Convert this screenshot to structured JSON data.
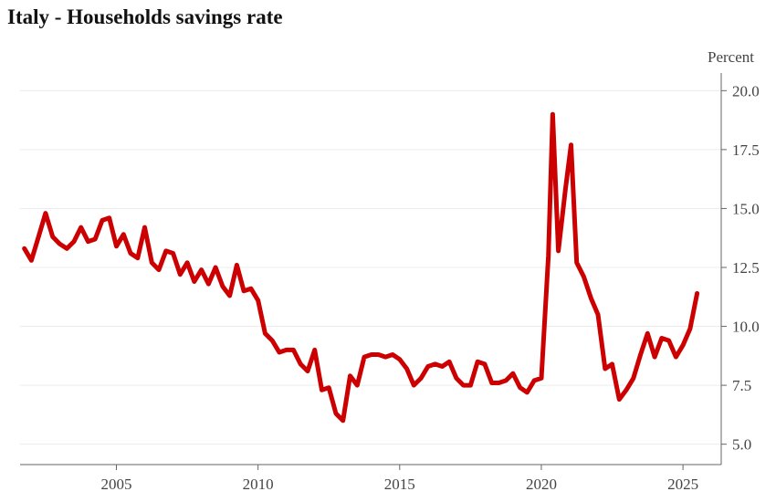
{
  "title": "Italy - Households savings rate",
  "chart_data": {
    "type": "line",
    "title": "Italy - Households savings rate",
    "ylabel": "Percent",
    "xlabel": "",
    "xlim": [
      2001.6,
      2026.35
    ],
    "ylim": [
      4.6,
      20.4
    ],
    "x_ticks": [
      2005,
      2010,
      2015,
      2020,
      2025
    ],
    "y_ticks": [
      5.0,
      7.5,
      10.0,
      12.5,
      15.0,
      17.5,
      20.0
    ],
    "y_axis_position": "right",
    "grid": true,
    "line_color": "#cc0000",
    "series": [
      {
        "name": "",
        "points": [
          [
            2001.75,
            13.3
          ],
          [
            2002.0,
            12.8
          ],
          [
            2002.25,
            13.8
          ],
          [
            2002.5,
            14.8
          ],
          [
            2002.75,
            13.8
          ],
          [
            2003.0,
            13.5
          ],
          [
            2003.25,
            13.3
          ],
          [
            2003.5,
            13.6
          ],
          [
            2003.75,
            14.2
          ],
          [
            2004.0,
            13.6
          ],
          [
            2004.25,
            13.7
          ],
          [
            2004.5,
            14.5
          ],
          [
            2004.75,
            14.6
          ],
          [
            2005.0,
            13.4
          ],
          [
            2005.25,
            13.9
          ],
          [
            2005.5,
            13.1
          ],
          [
            2005.75,
            12.9
          ],
          [
            2006.0,
            14.2
          ],
          [
            2006.25,
            12.7
          ],
          [
            2006.5,
            12.4
          ],
          [
            2006.75,
            13.2
          ],
          [
            2007.0,
            13.1
          ],
          [
            2007.25,
            12.2
          ],
          [
            2007.5,
            12.7
          ],
          [
            2007.75,
            11.9
          ],
          [
            2008.0,
            12.4
          ],
          [
            2008.25,
            11.8
          ],
          [
            2008.5,
            12.5
          ],
          [
            2008.75,
            11.7
          ],
          [
            2009.0,
            11.3
          ],
          [
            2009.25,
            12.6
          ],
          [
            2009.5,
            11.5
          ],
          [
            2009.75,
            11.6
          ],
          [
            2010.0,
            11.1
          ],
          [
            2010.25,
            9.7
          ],
          [
            2010.5,
            9.4
          ],
          [
            2010.75,
            8.9
          ],
          [
            2011.0,
            9.0
          ],
          [
            2011.25,
            9.0
          ],
          [
            2011.5,
            8.4
          ],
          [
            2011.75,
            8.1
          ],
          [
            2012.0,
            9.0
          ],
          [
            2012.25,
            7.3
          ],
          [
            2012.5,
            7.4
          ],
          [
            2012.75,
            6.3
          ],
          [
            2013.0,
            6.0
          ],
          [
            2013.25,
            7.9
          ],
          [
            2013.5,
            7.5
          ],
          [
            2013.75,
            8.7
          ],
          [
            2014.0,
            8.8
          ],
          [
            2014.25,
            8.8
          ],
          [
            2014.5,
            8.7
          ],
          [
            2014.75,
            8.8
          ],
          [
            2015.0,
            8.6
          ],
          [
            2015.25,
            8.2
          ],
          [
            2015.5,
            7.5
          ],
          [
            2015.75,
            7.8
          ],
          [
            2016.0,
            8.3
          ],
          [
            2016.25,
            8.4
          ],
          [
            2016.5,
            8.3
          ],
          [
            2016.75,
            8.5
          ],
          [
            2017.0,
            7.8
          ],
          [
            2017.25,
            7.5
          ],
          [
            2017.5,
            7.5
          ],
          [
            2017.75,
            8.5
          ],
          [
            2018.0,
            8.4
          ],
          [
            2018.25,
            7.6
          ],
          [
            2018.5,
            7.6
          ],
          [
            2018.75,
            7.7
          ],
          [
            2019.0,
            8.0
          ],
          [
            2019.25,
            7.4
          ],
          [
            2019.5,
            7.2
          ],
          [
            2019.75,
            7.7
          ],
          [
            2020.0,
            7.8
          ],
          [
            2020.25,
            13.0
          ],
          [
            2020.4,
            19.0
          ],
          [
            2020.6,
            13.2
          ],
          [
            2020.85,
            15.8
          ],
          [
            2021.05,
            17.7
          ],
          [
            2021.25,
            12.7
          ],
          [
            2021.5,
            12.1
          ],
          [
            2021.75,
            11.2
          ],
          [
            2022.0,
            10.5
          ],
          [
            2022.25,
            8.2
          ],
          [
            2022.5,
            8.4
          ],
          [
            2022.75,
            6.9
          ],
          [
            2023.0,
            7.3
          ],
          [
            2023.25,
            7.8
          ],
          [
            2023.5,
            8.8
          ],
          [
            2023.75,
            9.7
          ],
          [
            2024.0,
            8.7
          ],
          [
            2024.25,
            9.5
          ],
          [
            2024.5,
            9.4
          ],
          [
            2024.75,
            8.7
          ],
          [
            2025.0,
            9.2
          ],
          [
            2025.25,
            9.9
          ],
          [
            2025.5,
            11.4
          ]
        ]
      }
    ]
  }
}
